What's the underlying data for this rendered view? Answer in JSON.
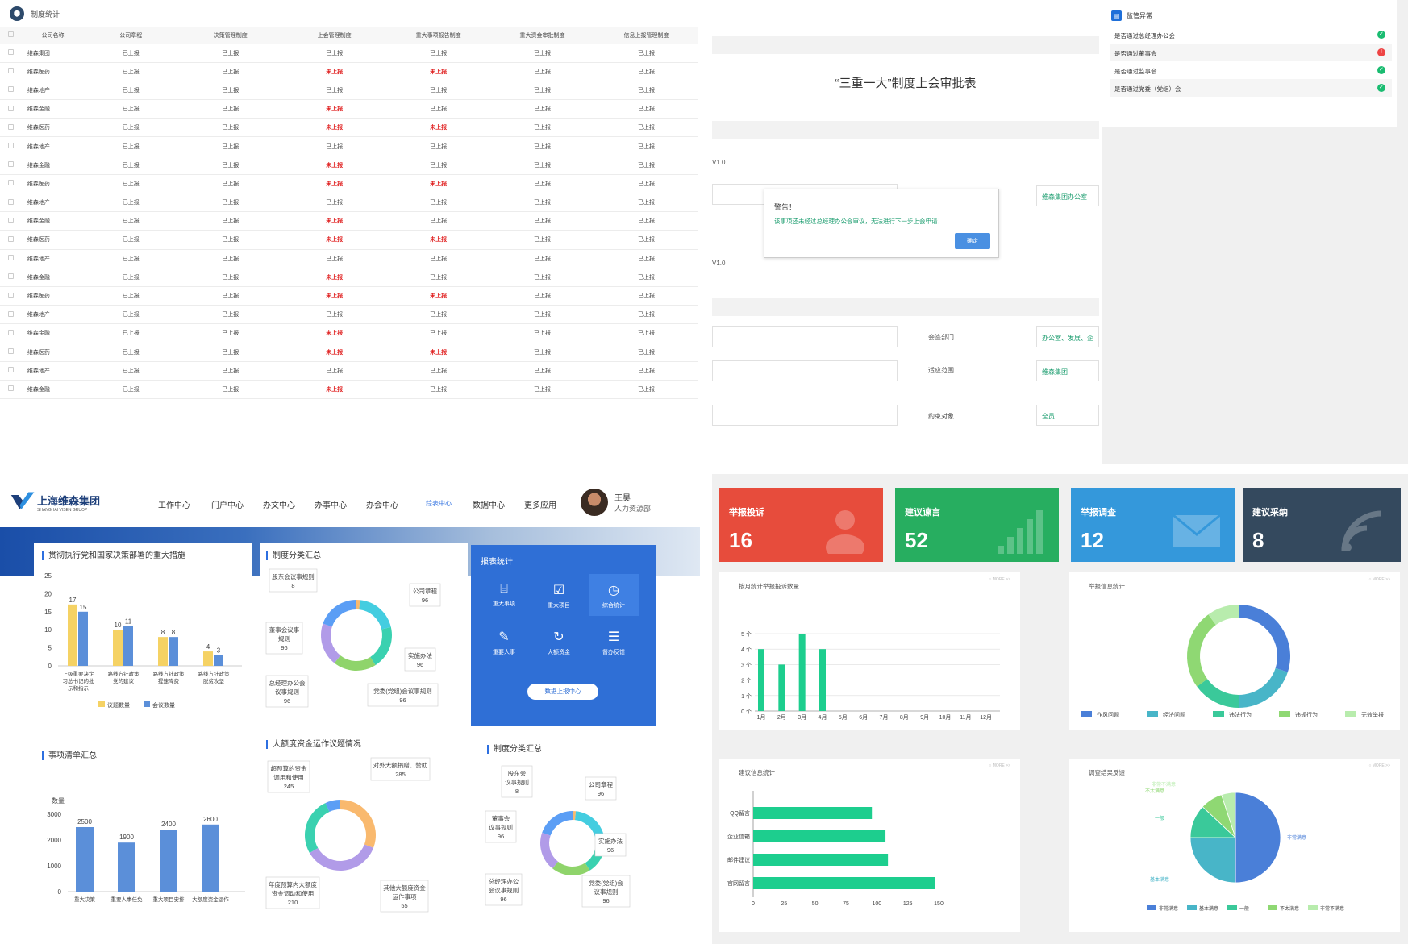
{
  "q1": {
    "title": "制度统计",
    "headers": [
      "公司名称",
      "公司章程",
      "决策管理制度",
      "上会管理制度",
      "重大事项报告制度",
      "重大资金审批制度",
      "信息上报管理制度"
    ],
    "rows": [
      [
        "维森集团",
        "已上报",
        "已上报",
        "已上报",
        "已上报",
        "已上报",
        "已上报"
      ],
      [
        "维森医药",
        "已上报",
        "已上报",
        "未上报",
        "未上报",
        "已上报",
        "已上报"
      ],
      [
        "维森地产",
        "已上报",
        "已上报",
        "已上报",
        "已上报",
        "已上报",
        "已上报"
      ],
      [
        "维森金融",
        "已上报",
        "已上报",
        "未上报",
        "已上报",
        "已上报",
        "已上报"
      ],
      [
        "维森医药",
        "已上报",
        "已上报",
        "未上报",
        "未上报",
        "已上报",
        "已上报"
      ],
      [
        "维森地产",
        "已上报",
        "已上报",
        "已上报",
        "已上报",
        "已上报",
        "已上报"
      ],
      [
        "维森金融",
        "已上报",
        "已上报",
        "未上报",
        "已上报",
        "已上报",
        "已上报"
      ],
      [
        "维森医药",
        "已上报",
        "已上报",
        "未上报",
        "未上报",
        "已上报",
        "已上报"
      ],
      [
        "维森地产",
        "已上报",
        "已上报",
        "已上报",
        "已上报",
        "已上报",
        "已上报"
      ],
      [
        "维森金融",
        "已上报",
        "已上报",
        "未上报",
        "已上报",
        "已上报",
        "已上报"
      ],
      [
        "维森医药",
        "已上报",
        "已上报",
        "未上报",
        "未上报",
        "已上报",
        "已上报"
      ],
      [
        "维森地产",
        "已上报",
        "已上报",
        "已上报",
        "已上报",
        "已上报",
        "已上报"
      ],
      [
        "维森金融",
        "已上报",
        "已上报",
        "未上报",
        "已上报",
        "已上报",
        "已上报"
      ],
      [
        "维森医药",
        "已上报",
        "已上报",
        "未上报",
        "未上报",
        "已上报",
        "已上报"
      ],
      [
        "维森地产",
        "已上报",
        "已上报",
        "已上报",
        "已上报",
        "已上报",
        "已上报"
      ],
      [
        "维森金融",
        "已上报",
        "已上报",
        "未上报",
        "已上报",
        "已上报",
        "已上报"
      ],
      [
        "维森医药",
        "已上报",
        "已上报",
        "未上报",
        "未上报",
        "已上报",
        "已上报"
      ],
      [
        "维森地产",
        "已上报",
        "已上报",
        "已上报",
        "已上报",
        "已上报",
        "已上报"
      ],
      [
        "维森金融",
        "已上报",
        "已上报",
        "未上报",
        "已上报",
        "已上报",
        "已上报"
      ]
    ],
    "not_reported": "未上报",
    "red": "#e02020"
  },
  "q2": {
    "title": "“三重一大”制度上会审批表",
    "version": "V1.0",
    "version2": "V1.0",
    "org_value": "维森集团办公室",
    "dialog": {
      "title": "警告！",
      "message": "该事项还未经过总经理办公会审议，无法进行下一步上会申请！",
      "ok": "确定"
    },
    "fields": [
      {
        "label": "会签部门",
        "value": "办公室、发展、企"
      },
      {
        "label": "适应范围",
        "value": "维森集团"
      },
      {
        "label": "约束对象",
        "value": "全员"
      }
    ]
  },
  "q3": {
    "title": "监管异常",
    "items": [
      {
        "label": "是否通过总经理办公会",
        "status": "ok"
      },
      {
        "label": "是否通过董事会",
        "status": "error"
      },
      {
        "label": "是否通过监事会",
        "status": "ok"
      },
      {
        "label": "是否通过党委（党组）会",
        "status": "ok"
      }
    ]
  },
  "q4": {
    "brand_cn": "上海维森集团",
    "brand_en": "SHANGHAI VISEN GRUOP",
    "nav": [
      "工作中心",
      "门户中心",
      "办文中心",
      "办事中心",
      "办会中心",
      "综表中心",
      "数据中心",
      "更多应用"
    ],
    "nav_active_index": 5,
    "user_name": "王昊",
    "user_dept": "人力资源部",
    "accent": "#2f6fd6",
    "panel1": {
      "title": "贯彻执行党和国家决策部署的重大措施",
      "legend": [
        "议题数量",
        "会议数量"
      ],
      "colors": [
        "#f5d264",
        "#5b8fd9"
      ],
      "y_ticks": [
        "0",
        "5",
        "10",
        "15",
        "20",
        "25"
      ],
      "categories": [
        [
          "上级重要决定",
          "习总书记的批",
          "示和指示"
        ],
        [
          "路线方针政策",
          "党的建议"
        ],
        [
          "路线方针政策",
          "提速降费"
        ],
        [
          "路线方针政策",
          "脱贫攻坚"
        ]
      ],
      "series": [
        {
          "name": "议题数量",
          "values": [
            17,
            10,
            8,
            4
          ]
        },
        {
          "name": "会议数量",
          "values": [
            15,
            11,
            8,
            3
          ]
        }
      ],
      "ylim": [
        0,
        25
      ]
    },
    "panel2": {
      "title": "制度分类汇总",
      "labels": [
        [
          "股东会议事规则",
          "8"
        ],
        [
          "公司章程",
          "96"
        ],
        [
          "董事会议事",
          "规则",
          "96"
        ],
        [
          "实施办法",
          "96"
        ],
        [
          "总经理办公会",
          "议事规则",
          "96"
        ],
        [
          "党委(党组)会议事规则",
          "96"
        ]
      ],
      "colors": [
        "#f9b96e",
        "#44cde0",
        "#3ad1b0",
        "#8fd46b",
        "#b19be8",
        "#5b9ef5"
      ]
    },
    "report": {
      "title": "报表统计",
      "buttons": [
        {
          "label": "重大事项",
          "icon": "⌸"
        },
        {
          "label": "重大项目",
          "icon": "☑"
        },
        {
          "label": "综合统计",
          "icon": "◷"
        },
        {
          "label": "重要人事",
          "icon": "✎"
        },
        {
          "label": "大额资金",
          "icon": "↻"
        },
        {
          "label": "督办反馈",
          "icon": "☰"
        }
      ],
      "go": "数据上报中心"
    },
    "panel3": {
      "title": "事项清单汇总",
      "ylabel": "数量",
      "y_ticks": [
        "0",
        "1000",
        "2000",
        "3000"
      ],
      "categories": [
        "重大决策",
        "重要人事任免",
        "重大项目安排",
        "大额度资金运作"
      ],
      "values": [
        2500,
        1900,
        2400,
        2600
      ],
      "ylim": [
        0,
        3000
      ],
      "color": "#5b8fd9"
    },
    "panel4": {
      "title": "大额度资金运作议题情况",
      "labels": [
        [
          "超预算的资金",
          "调用和使用",
          "245"
        ],
        [
          "对外大额捐赠、赞助",
          "285"
        ],
        [
          "年度预算内大额度",
          "资金调动和使用",
          "210"
        ],
        [
          "其他大额度资金",
          "运作事项",
          "55"
        ]
      ],
      "colors": [
        "#f9b96e",
        "#b19be8",
        "#3ad1b0",
        "#5b9ef5"
      ]
    },
    "panel5": {
      "title": "制度分类汇总",
      "labels": [
        [
          "股东会",
          "议事规则",
          "8"
        ],
        [
          "公司章程",
          "96"
        ],
        [
          "董事会",
          "议事规则",
          "96"
        ],
        [
          "实施办法",
          "96"
        ],
        [
          "总经理办公",
          "会议事规则",
          "96"
        ],
        [
          "党委(党组)会",
          "议事规则",
          "96"
        ]
      ],
      "colors": [
        "#f9b96e",
        "#44cde0",
        "#3ad1b0",
        "#8fd46b",
        "#b19be8",
        "#5b9ef5"
      ]
    }
  },
  "q5": {
    "stats": [
      {
        "label": "举报投诉",
        "value": "16",
        "color": "#e74c3c",
        "icon": "people-icon"
      },
      {
        "label": "建议谏言",
        "value": "52",
        "color": "#27ae60",
        "icon": "signal-bars-icon"
      },
      {
        "label": "举报调查",
        "value": "12",
        "color": "#3498db",
        "icon": "mail-icon"
      },
      {
        "label": "建议采纳",
        "value": "8",
        "color": "#34495e",
        "icon": "rss-icon"
      }
    ],
    "refresh_label": "○ MORE >>",
    "chart1": {
      "title": "按月统计举报投诉数量",
      "type": "bar",
      "categories": [
        "1月",
        "2月",
        "3月",
        "4月",
        "5月",
        "6月",
        "7月",
        "8月",
        "9月",
        "10月",
        "11月",
        "12月"
      ],
      "values": [
        4,
        3,
        5,
        4,
        0,
        0,
        0,
        0,
        0,
        0,
        0,
        0
      ],
      "y_ticks": [
        "0 个",
        "1 个",
        "2 个",
        "3 个",
        "4 个",
        "5 个"
      ],
      "ylim": [
        0,
        5
      ],
      "color": "#1dce8e"
    },
    "chart2": {
      "title": "举报信息统计",
      "type": "pie",
      "legend": [
        "作风问题",
        "经济问题",
        "违法行为",
        "违规行为",
        "无效举报"
      ],
      "values": [
        30,
        20,
        15,
        25,
        10
      ],
      "colors": [
        "#4a7fd8",
        "#48b5c8",
        "#3ac99a",
        "#8fd873",
        "#b8ecad"
      ]
    },
    "chart3": {
      "title": "建议信息统计",
      "type": "bar",
      "categories": [
        "QQ留言",
        "企业信箱",
        "邮件建议",
        "官网留言"
      ],
      "values": [
        96,
        107,
        109,
        147
      ],
      "x_ticks": [
        "0",
        "25",
        "50",
        "75",
        "100",
        "125",
        "150"
      ],
      "xlim": [
        0,
        150
      ],
      "color": "#1dce8e"
    },
    "chart4": {
      "title": "调查结果反馈",
      "type": "pie",
      "legend": [
        "非常满意",
        "基本满意",
        "一般",
        "不太满意",
        "非常不满意"
      ],
      "values": [
        50,
        25,
        12,
        8,
        5
      ],
      "colors": [
        "#4a7fd8",
        "#48b5c8",
        "#3ac99a",
        "#8fd873",
        "#b8ecad"
      ]
    }
  }
}
